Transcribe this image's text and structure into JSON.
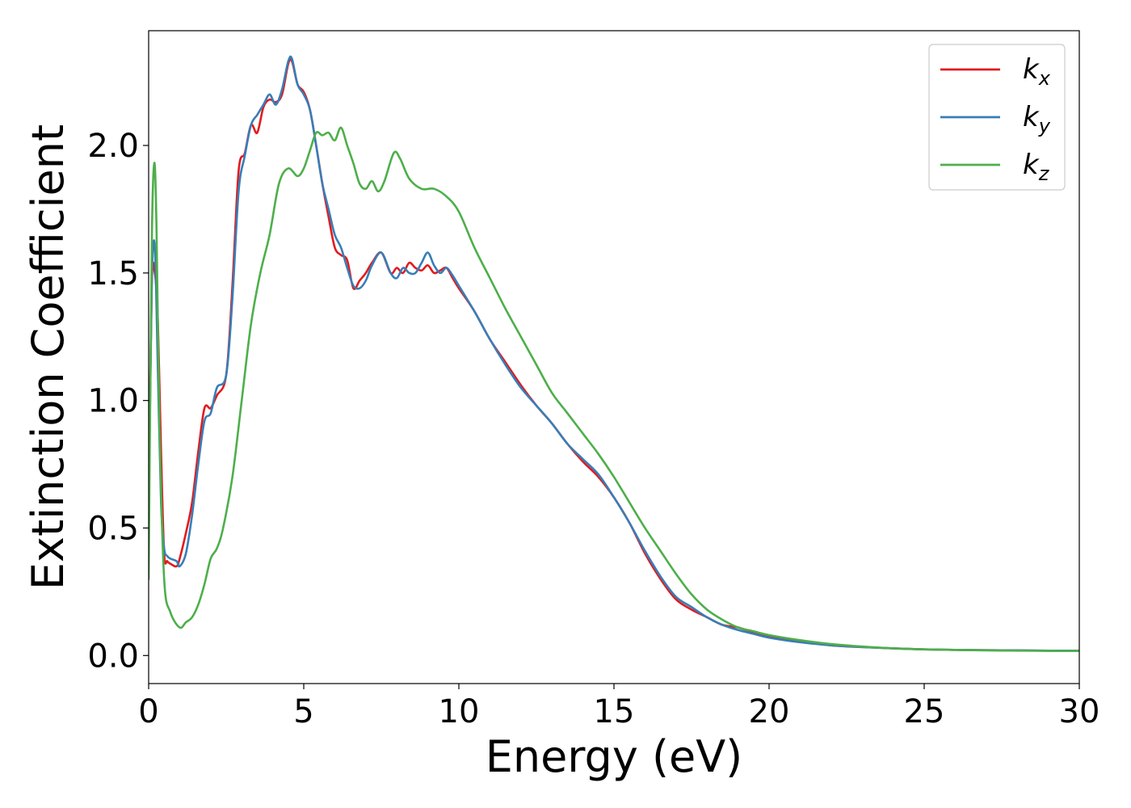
{
  "chart_data": {
    "type": "line",
    "title": "",
    "xlabel": "Energy (eV)",
    "ylabel": "Extinction Coefficient",
    "xlim": [
      0,
      30
    ],
    "ylim": [
      -0.11,
      2.45
    ],
    "xticks": [
      0,
      5,
      10,
      15,
      20,
      25,
      30
    ],
    "xtick_labels": [
      "0",
      "5",
      "10",
      "15",
      "20",
      "25",
      "30"
    ],
    "yticks": [
      0.0,
      0.5,
      1.0,
      1.5,
      2.0
    ],
    "ytick_labels": [
      "0.0",
      "0.5",
      "1.0",
      "1.5",
      "2.0"
    ],
    "grid": false,
    "legend_position": "top-right",
    "series": [
      {
        "name": "kx",
        "legend_base": "k",
        "legend_sub": "x",
        "color": "#e31a1c",
        "x": [
          0,
          0.1,
          0.2,
          0.3,
          0.4,
          0.5,
          0.6,
          0.7,
          0.9,
          1.0,
          1.2,
          1.4,
          1.6,
          1.8,
          2.0,
          2.2,
          2.5,
          2.7,
          2.9,
          3.1,
          3.3,
          3.5,
          3.7,
          3.9,
          4.1,
          4.3,
          4.5,
          4.62,
          4.8,
          5.0,
          5.2,
          5.4,
          5.6,
          5.8,
          6.0,
          6.2,
          6.4,
          6.6,
          6.8,
          7.0,
          7.2,
          7.5,
          7.8,
          8.0,
          8.2,
          8.4,
          8.6,
          8.8,
          9.0,
          9.2,
          9.4,
          9.6,
          9.8,
          10.0,
          10.5,
          11.0,
          11.5,
          12.0,
          12.5,
          13.0,
          13.5,
          14.0,
          14.5,
          15.0,
          15.5,
          16.0,
          16.5,
          17.0,
          17.5,
          18.0,
          18.5,
          19.0,
          19.5,
          20.0,
          21.0,
          22.0,
          23.0,
          24.0,
          25.0,
          26.0,
          27.0,
          28.0,
          29.0,
          30.0
        ],
        "y": [
          0.6,
          1.45,
          1.5,
          1.3,
          0.8,
          0.4,
          0.37,
          0.36,
          0.35,
          0.38,
          0.48,
          0.6,
          0.8,
          0.97,
          0.97,
          1.02,
          1.1,
          1.45,
          1.9,
          1.97,
          2.08,
          2.05,
          2.15,
          2.18,
          2.17,
          2.2,
          2.32,
          2.33,
          2.24,
          2.21,
          2.14,
          2.0,
          1.85,
          1.72,
          1.6,
          1.57,
          1.55,
          1.44,
          1.47,
          1.5,
          1.54,
          1.58,
          1.5,
          1.52,
          1.5,
          1.54,
          1.52,
          1.51,
          1.53,
          1.5,
          1.51,
          1.52,
          1.48,
          1.44,
          1.35,
          1.24,
          1.15,
          1.06,
          0.98,
          0.91,
          0.83,
          0.76,
          0.7,
          0.62,
          0.52,
          0.4,
          0.3,
          0.22,
          0.18,
          0.15,
          0.12,
          0.11,
          0.09,
          0.075,
          0.055,
          0.04,
          0.033,
          0.028,
          0.024,
          0.022,
          0.021,
          0.02,
          0.019,
          0.019
        ]
      },
      {
        "name": "ky",
        "legend_base": "k",
        "legend_sub": "y",
        "color": "#377eb8",
        "x": [
          0,
          0.1,
          0.2,
          0.3,
          0.4,
          0.5,
          0.6,
          0.7,
          0.9,
          1.0,
          1.2,
          1.4,
          1.6,
          1.8,
          2.0,
          2.2,
          2.5,
          2.7,
          2.9,
          3.1,
          3.3,
          3.5,
          3.7,
          3.9,
          4.1,
          4.3,
          4.5,
          4.62,
          4.8,
          5.0,
          5.2,
          5.4,
          5.6,
          5.8,
          6.0,
          6.2,
          6.4,
          6.6,
          6.8,
          7.0,
          7.2,
          7.5,
          7.8,
          8.0,
          8.2,
          8.4,
          8.6,
          8.8,
          9.0,
          9.2,
          9.4,
          9.6,
          9.8,
          10.0,
          10.5,
          11.0,
          11.5,
          12.0,
          12.5,
          13.0,
          13.5,
          14.0,
          14.5,
          15.0,
          15.5,
          16.0,
          16.5,
          17.0,
          17.5,
          18.0,
          18.5,
          19.0,
          19.5,
          20.0,
          21.0,
          22.0,
          23.0,
          24.0,
          25.0,
          26.0,
          27.0,
          28.0,
          29.0,
          30.0
        ],
        "y": [
          0.5,
          1.45,
          1.6,
          1.1,
          0.6,
          0.42,
          0.39,
          0.38,
          0.37,
          0.35,
          0.4,
          0.55,
          0.75,
          0.92,
          0.95,
          1.05,
          1.1,
          1.4,
          1.82,
          1.96,
          2.08,
          2.12,
          2.16,
          2.2,
          2.16,
          2.22,
          2.33,
          2.34,
          2.24,
          2.2,
          2.14,
          2.0,
          1.85,
          1.75,
          1.65,
          1.6,
          1.52,
          1.45,
          1.44,
          1.47,
          1.53,
          1.58,
          1.5,
          1.48,
          1.52,
          1.5,
          1.5,
          1.54,
          1.58,
          1.53,
          1.5,
          1.52,
          1.49,
          1.45,
          1.35,
          1.24,
          1.14,
          1.05,
          0.98,
          0.91,
          0.83,
          0.77,
          0.71,
          0.62,
          0.52,
          0.41,
          0.31,
          0.23,
          0.19,
          0.15,
          0.12,
          0.1,
          0.085,
          0.07,
          0.052,
          0.04,
          0.033,
          0.028,
          0.024,
          0.022,
          0.021,
          0.02,
          0.019,
          0.019
        ]
      },
      {
        "name": "kz",
        "legend_base": "k",
        "legend_sub": "z",
        "color": "#4daf4a",
        "x": [
          0,
          0.1,
          0.18,
          0.25,
          0.35,
          0.5,
          0.7,
          1.0,
          1.2,
          1.4,
          1.6,
          1.8,
          2.0,
          2.2,
          2.4,
          2.7,
          3.0,
          3.3,
          3.6,
          3.9,
          4.2,
          4.5,
          4.8,
          5.0,
          5.2,
          5.4,
          5.6,
          5.8,
          6.0,
          6.2,
          6.4,
          6.6,
          6.8,
          7.0,
          7.2,
          7.4,
          7.6,
          7.9,
          8.1,
          8.4,
          8.8,
          9.2,
          9.6,
          10.0,
          10.5,
          11.0,
          11.5,
          12.0,
          12.5,
          13.0,
          13.5,
          14.0,
          14.5,
          15.0,
          15.5,
          16.0,
          16.5,
          17.0,
          17.5,
          18.0,
          18.5,
          19.0,
          19.5,
          20.0,
          21.0,
          22.0,
          23.0,
          24.0,
          25.0,
          26.0,
          27.0,
          28.0,
          29.0,
          30.0
        ],
        "y": [
          0.3,
          1.6,
          1.93,
          1.7,
          0.9,
          0.3,
          0.17,
          0.11,
          0.13,
          0.15,
          0.2,
          0.28,
          0.38,
          0.42,
          0.5,
          0.7,
          1.0,
          1.3,
          1.5,
          1.65,
          1.85,
          1.91,
          1.88,
          1.91,
          1.98,
          2.05,
          2.04,
          2.05,
          2.02,
          2.07,
          2.0,
          1.93,
          1.85,
          1.83,
          1.86,
          1.82,
          1.86,
          1.97,
          1.95,
          1.87,
          1.83,
          1.83,
          1.8,
          1.74,
          1.6,
          1.48,
          1.36,
          1.25,
          1.14,
          1.03,
          0.95,
          0.87,
          0.79,
          0.7,
          0.6,
          0.5,
          0.41,
          0.32,
          0.24,
          0.18,
          0.14,
          0.11,
          0.095,
          0.08,
          0.06,
          0.045,
          0.035,
          0.028,
          0.024,
          0.022,
          0.02,
          0.019,
          0.018,
          0.018
        ]
      }
    ]
  }
}
